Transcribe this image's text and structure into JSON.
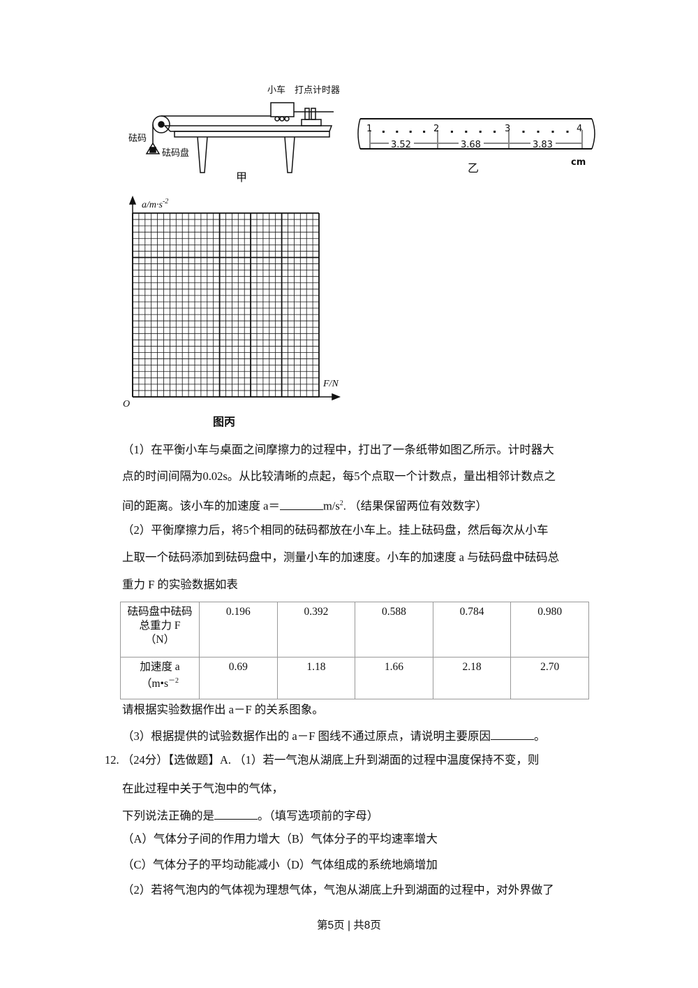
{
  "figure_jia": {
    "labels": {
      "cart": "小车",
      "timer": "打点计时器",
      "weights": "砝码",
      "pan": "砝码盘",
      "caption": "甲"
    }
  },
  "figure_yi": {
    "points": [
      "1",
      "2",
      "3",
      "4"
    ],
    "distances": [
      "3.52",
      "3.68",
      "3.83"
    ],
    "unit": "cm",
    "caption": "乙"
  },
  "figure_bing": {
    "y_axis_label": "a/m·s",
    "y_axis_exp": "-2",
    "x_axis_label": "F/N",
    "origin_label": "O",
    "caption": "图丙"
  },
  "question_11": {
    "part1_lines": [
      "（1）在平衡小车与桌面之间摩擦力的过程中，打出了一条纸带如图乙所示。计时器大",
      "点的时间间隔为0.02s。从比较清晰的点起，每5个点取一个计数点，量出相邻计数点之",
      "间的距离。该小车的加速度 a＝"
    ],
    "part1_unit": "m/s",
    "part1_unit_exp": "2",
    "part1_tail": ". （结果保留两位有效数字）",
    "part2_lines": [
      "（2）平衡摩擦力后，将5个相同的砝码都放在小车上。挂上砝码盘，然后每次从小车",
      "上取一个砝码添加到砝码盘中，测量小车的加速度。小车的加速度 a 与砝码盘中砝码总",
      "重力 F 的实验数据如表"
    ],
    "table": {
      "row1_header": [
        "砝码盘中砝码",
        "总重力 F",
        "（N）"
      ],
      "row1_values": [
        "0.196",
        "0.392",
        "0.588",
        "0.784",
        "0.980"
      ],
      "row2_header": [
        "加速度 a",
        "（m•s"
      ],
      "row2_header_exp": "－2",
      "row2_values": [
        "0.69",
        "1.18",
        "1.66",
        "2.18",
        "2.70"
      ]
    },
    "after_table": "请根据实验数据作出 a－F 的关系图象。",
    "part3": "（3）根据提供的试验数据作出的 a－F 图线不通过原点，请说明主要原因",
    "part3_tail": "。"
  },
  "question_12": {
    "line1": "12.  （24分）【选做题】A. （1）若一气泡从湖底上升到湖面的过程中温度保持不变，则",
    "line2": "在此过程中关于气泡中的气体，",
    "line3_head": "下列说法正确的是",
    "line3_tail": "。（填写选项前的字母）",
    "options_line1": "（A）气体分子间的作用力增大（B）气体分子的平均速率增大",
    "options_line2": "（C）气体分子的平均动能减小（D）气体组成的系统地熵增加",
    "part2": "（2）若将气泡内的气体视为理想气体，气泡从湖底上升到湖面的过程中，对外界做了"
  },
  "footer": "第5页 | 共8页"
}
